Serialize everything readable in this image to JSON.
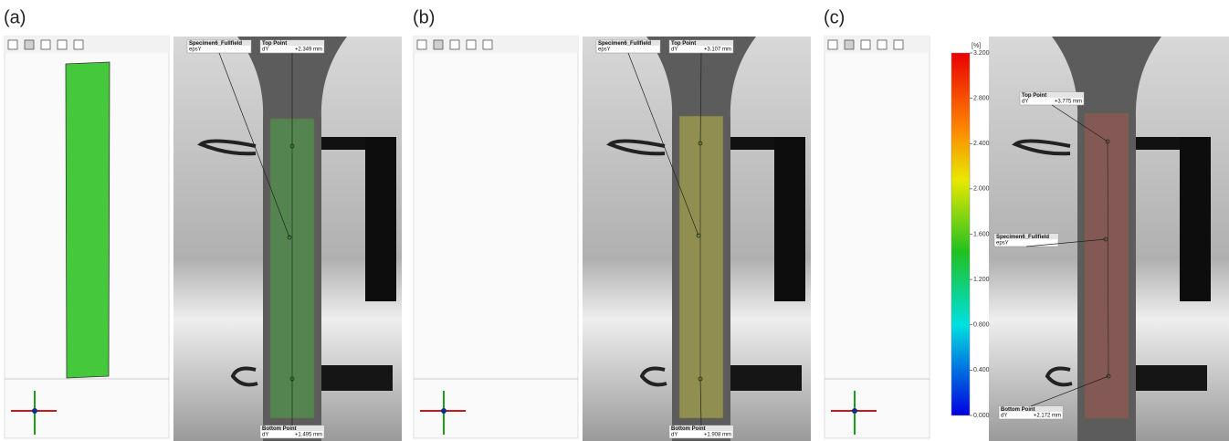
{
  "panels": [
    {
      "label": "(a)",
      "fullfield": {
        "name": "Specimen6_Fullfield",
        "quantity": "epsY"
      },
      "top_point": {
        "name": "Top Point",
        "component": "dY",
        "value": "+2.349 mm"
      },
      "bottom_point": {
        "name": "Bottom Point",
        "component": "dY",
        "value": "+1.495 mm"
      }
    },
    {
      "label": "(b)",
      "fullfield": {
        "name": "Specimen6_Fullfield",
        "quantity": "epsY"
      },
      "top_point": {
        "name": "Top Point",
        "component": "dY",
        "value": "+3.107 mm"
      },
      "bottom_point": {
        "name": "Bottom Point",
        "component": "dY",
        "value": "+1.908 mm"
      }
    },
    {
      "label": "(c)",
      "fullfield": {
        "name": "Specimen6_Fullfield",
        "quantity": "epsY"
      },
      "top_point": {
        "name": "Top Point",
        "component": "dY",
        "value": "+3.775 mm"
      },
      "bottom_point": {
        "name": "Bottom Point",
        "component": "dY",
        "value": "+2.172 mm"
      }
    }
  ],
  "colorbar": {
    "unit": "[%]",
    "ticks": [
      {
        "value": 3.2,
        "label": "3.200"
      },
      {
        "value": 2.8,
        "label": "2.800"
      },
      {
        "value": 2.4,
        "label": "2.400"
      },
      {
        "value": 2.0,
        "label": "2.000"
      },
      {
        "value": 1.6,
        "label": "1.600"
      },
      {
        "value": 1.2,
        "label": "1.200"
      },
      {
        "value": 0.8,
        "label": "0.800"
      },
      {
        "value": 0.4,
        "label": "0.400"
      },
      {
        "value": 0.0,
        "label": "0.000"
      }
    ]
  }
}
